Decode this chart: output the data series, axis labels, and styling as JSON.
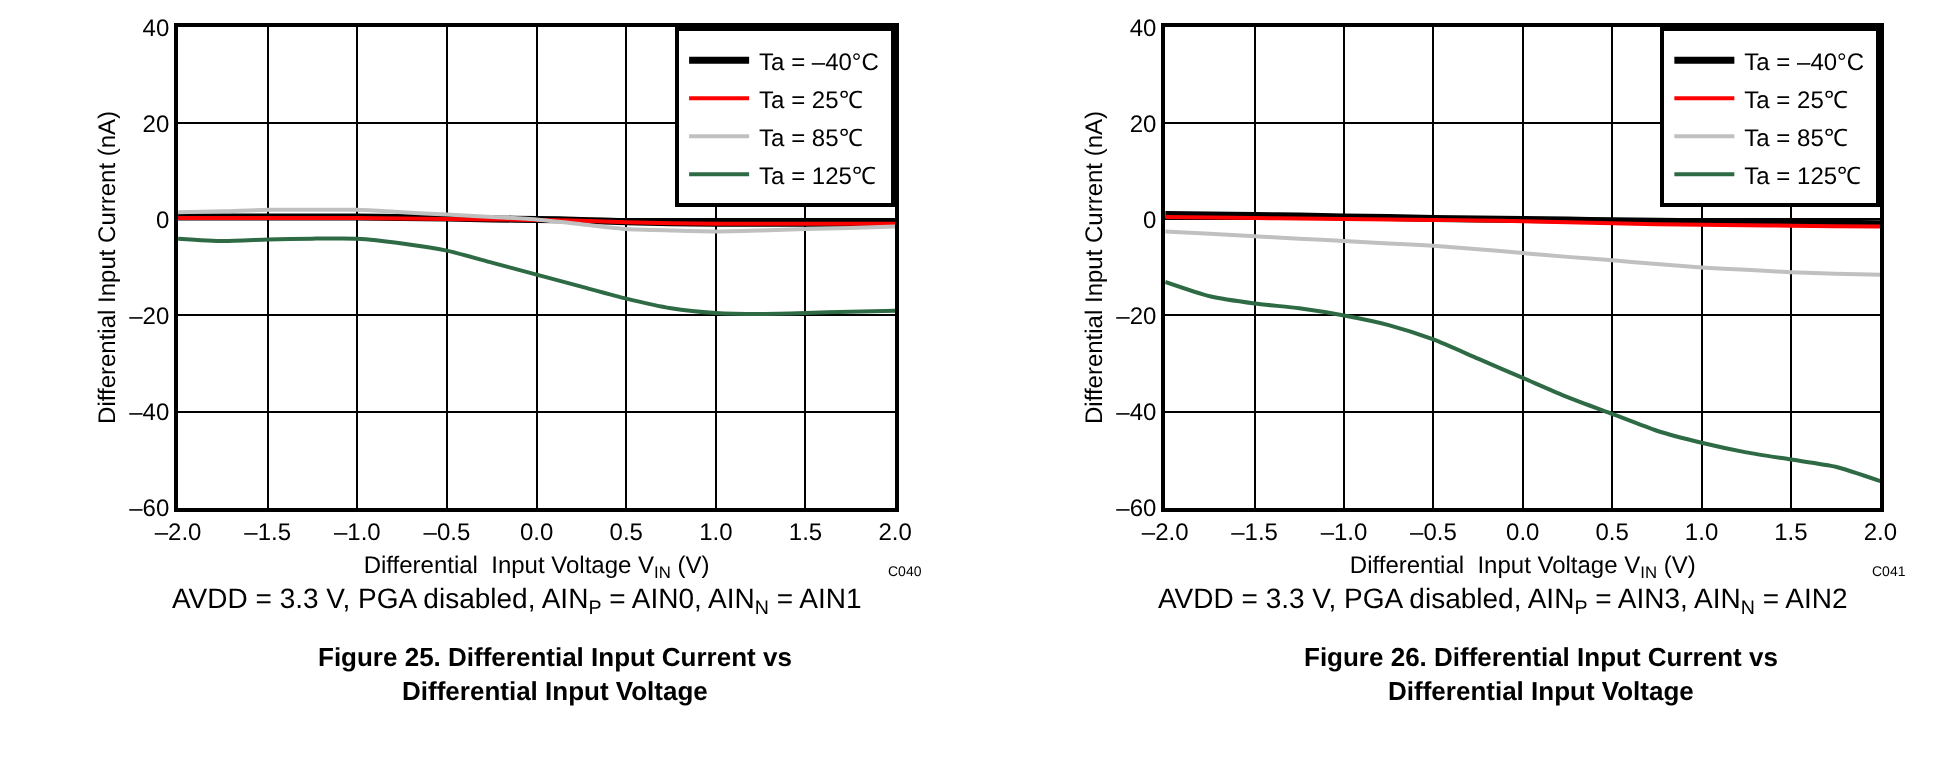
{
  "chart_data": [
    {
      "type": "line",
      "title": "Figure 25. Differential Input Current vs\nDifferential Input Voltage",
      "subtitle": "AVDD = 3.3 V, PGA disabled, AIN$_{P}$ = AIN0, AIN$_{N}$ = AIN1",
      "xlabel": "Differential  Input Voltage V$_{IN}$ (V)",
      "ylabel": "Differential Input Current (nA)",
      "annotations": [
        "C040"
      ],
      "x": [
        -2.0,
        -1.75,
        -1.5,
        -1.25,
        -1.0,
        -0.75,
        -0.5,
        -0.25,
        0.0,
        0.25,
        0.5,
        0.75,
        1.0,
        1.25,
        1.5,
        1.75,
        2.0
      ],
      "series": [
        {
          "name": "Ta = –40°C",
          "color": "#000000",
          "values": [
            0.5,
            0.5,
            0.5,
            0.5,
            0.5,
            0.4,
            0.3,
            0.1,
            0,
            -0.2,
            -0.5,
            -0.7,
            -0.8,
            -0.8,
            -0.8,
            -0.8,
            -0.8
          ]
        },
        {
          "name": "Ta = 25℃",
          "color": "#ff0000",
          "values": [
            0.3,
            0.3,
            0.3,
            0.3,
            0.3,
            0.2,
            0.1,
            0,
            -0.1,
            -0.3,
            -0.6,
            -0.8,
            -0.9,
            -0.9,
            -0.9,
            -0.9,
            -0.9
          ]
        },
        {
          "name": "Ta = 85℃",
          "color": "#c0c0c0",
          "values": [
            1.5,
            1.7,
            2,
            2,
            2,
            1.5,
            1,
            0.5,
            0,
            -1,
            -2,
            -2.3,
            -2.5,
            -2.3,
            -2,
            -1.8,
            -1.5
          ]
        },
        {
          "name": "Ta = 125℃",
          "color": "#2e6b45",
          "values": [
            -4,
            -4.5,
            -4.2,
            -4,
            -4,
            -5,
            -6.5,
            -9,
            -11.5,
            -14,
            -16.5,
            -18.5,
            -19.5,
            -19.7,
            -19.5,
            -19.2,
            -19
          ]
        }
      ],
      "xlim": [
        -2.0,
        2.0
      ],
      "xticks": [
        {
          "value": -2,
          "label": "–2.0"
        },
        {
          "value": -1.5,
          "label": "–1.5"
        },
        {
          "value": -1,
          "label": "–1.0"
        },
        {
          "value": -0.5,
          "label": "–0.5"
        },
        {
          "value": 0,
          "label": "0.0"
        },
        {
          "value": 0.5,
          "label": "0.5"
        },
        {
          "value": 1,
          "label": "1.0"
        },
        {
          "value": 1.5,
          "label": "1.5"
        },
        {
          "value": 2,
          "label": "2.0"
        }
      ],
      "ylim": [
        -60,
        40
      ],
      "yticks": [
        {
          "value": -60,
          "label": "–60"
        },
        {
          "value": -40,
          "label": "–40"
        },
        {
          "value": -20,
          "label": "–20"
        },
        0,
        20,
        40
      ],
      "grid": true,
      "legend": "top right",
      "marker": "none",
      "line_style": "solid"
    },
    {
      "type": "line",
      "title": "Figure 26. Differential Input Current vs\nDifferential Input Voltage",
      "subtitle": "AVDD = 3.3 V, PGA disabled, AIN$_{P}$ = AIN3, AIN$_{N}$ = AIN2",
      "xlabel": "Differential  Input Voltage V$_{IN}$ (V)",
      "ylabel": "Differential Input Current (nA)",
      "annotations": [
        "C041"
      ],
      "x": [
        -2.0,
        -1.75,
        -1.5,
        -1.25,
        -1.0,
        -0.75,
        -0.5,
        -0.25,
        0.0,
        0.25,
        0.5,
        0.75,
        1.0,
        1.25,
        1.5,
        1.75,
        2.0
      ],
      "series": [
        {
          "name": "Ta = –40°C",
          "color": "#000000",
          "values": [
            1,
            0.9,
            0.8,
            0.7,
            0.5,
            0.4,
            0.2,
            0.1,
            0,
            -0.1,
            -0.3,
            -0.4,
            -0.5,
            -0.6,
            -0.7,
            -0.8,
            -0.9
          ]
        },
        {
          "name": "Ta = 25℃",
          "color": "#ff0000",
          "values": [
            0.5,
            0.4,
            0.3,
            0.2,
            0.1,
            0,
            -0.1,
            -0.2,
            -0.4,
            -0.6,
            -0.8,
            -1,
            -1.1,
            -1.2,
            -1.3,
            -1.4,
            -1.5
          ]
        },
        {
          "name": "Ta = 85℃",
          "color": "#c0c0c0",
          "values": [
            -2.5,
            -3,
            -3.5,
            -4,
            -4.5,
            -5,
            -5.5,
            -6.2,
            -7,
            -7.8,
            -8.5,
            -9.3,
            -10,
            -10.5,
            -11,
            -11.3,
            -11.5
          ]
        },
        {
          "name": "Ta = 125℃",
          "color": "#2e6b45",
          "values": [
            -13,
            -16,
            -17.5,
            -18.5,
            -20,
            -22,
            -25,
            -29,
            -33,
            -37,
            -40.5,
            -44,
            -46.5,
            -48.5,
            -50,
            -51.5,
            -54.5
          ]
        }
      ],
      "xlim": [
        -2.0,
        2.0
      ],
      "xticks": [
        {
          "value": -2,
          "label": "–2.0"
        },
        {
          "value": -1.5,
          "label": "–1.5"
        },
        {
          "value": -1,
          "label": "–1.0"
        },
        {
          "value": -0.5,
          "label": "–0.5"
        },
        {
          "value": 0,
          "label": "0.0"
        },
        {
          "value": 0.5,
          "label": "0.5"
        },
        {
          "value": 1,
          "label": "1.0"
        },
        {
          "value": 1.5,
          "label": "1.5"
        },
        {
          "value": 2,
          "label": "2.0"
        }
      ],
      "ylim": [
        -60,
        40
      ],
      "yticks": [
        {
          "value": -60,
          "label": "–60"
        },
        {
          "value": -40,
          "label": "–40"
        },
        {
          "value": -20,
          "label": "–20"
        },
        0,
        20,
        40
      ],
      "grid": true,
      "legend": "top right",
      "marker": "none",
      "line_style": "solid"
    }
  ]
}
